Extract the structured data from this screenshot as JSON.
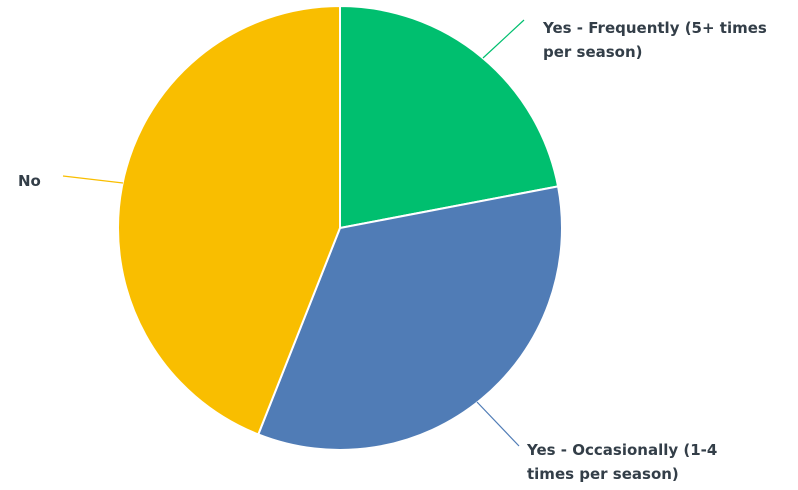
{
  "chart_data": {
    "type": "pie",
    "title": "",
    "slices": [
      {
        "label_lines": [
          "Yes - Frequently (5+ times",
          "per season)"
        ],
        "value": 22,
        "color": "#00bf6f"
      },
      {
        "label_lines": [
          "Yes - Occasionally (1-4",
          "times per season)"
        ],
        "value": 34,
        "color": "#507cb6"
      },
      {
        "label_lines": [
          "No"
        ],
        "value": 44,
        "color": "#f9be00"
      }
    ],
    "start_angle_deg": 0,
    "direction": "clockwise",
    "legend": "none"
  }
}
